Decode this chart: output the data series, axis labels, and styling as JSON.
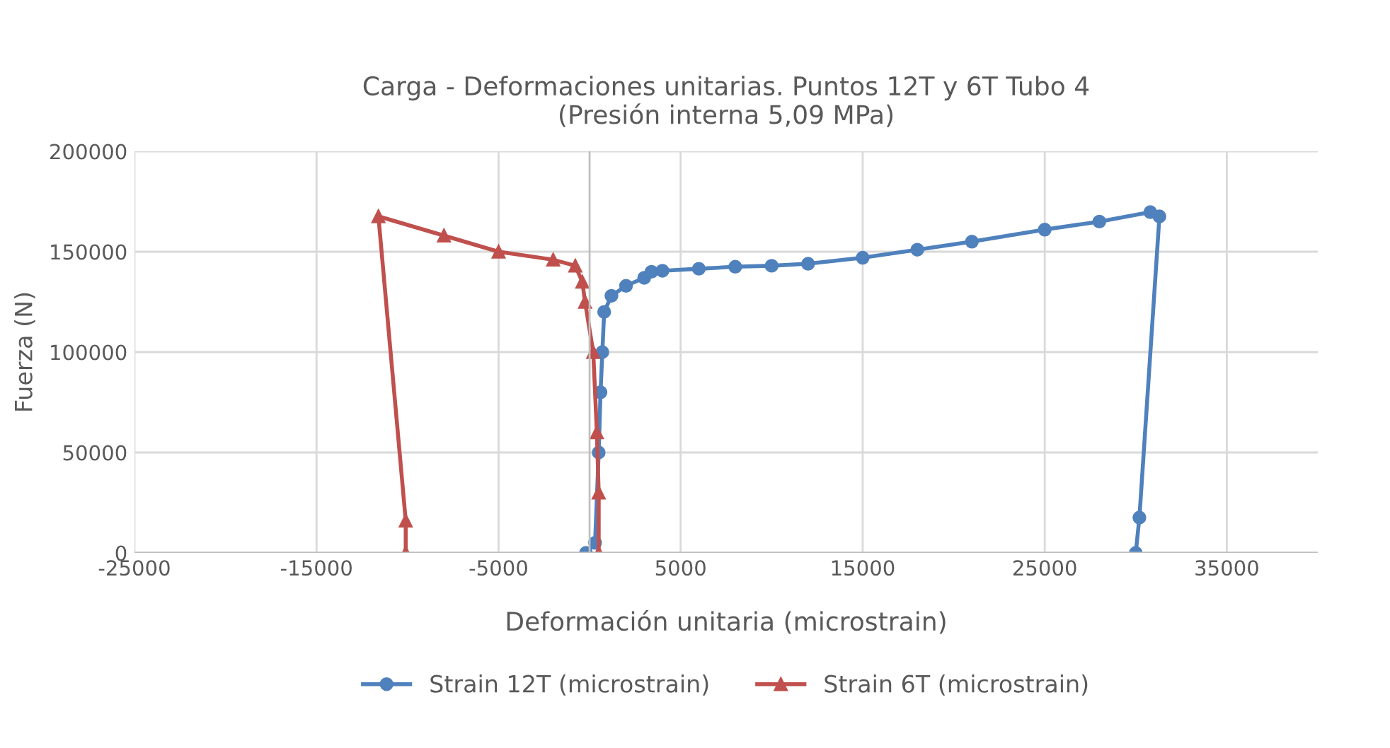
{
  "chart_data": {
    "type": "line",
    "title": "Carga - Deformaciones unitarias. Puntos 12T y 6T Tubo 4\n(Presión interna 5,09 MPa)",
    "xlabel": "Deformación unitaria (microstrain)",
    "ylabel": "Fuerza (N)",
    "xlim": [
      -25000,
      40000
    ],
    "xticks": [
      -25000,
      -15000,
      -5000,
      5000,
      15000,
      25000,
      35000
    ],
    "ylim": [
      0,
      200000
    ],
    "yticks": [
      0,
      50000,
      100000,
      150000,
      200000
    ],
    "grid": true,
    "legend": "bottom",
    "series": [
      {
        "name": "Strain 12T (microstrain)",
        "color": "#4f81bd",
        "marker": "circle",
        "x": [
          -200,
          300,
          500,
          600,
          700,
          800,
          1200,
          2000,
          3000,
          3400,
          4000,
          6000,
          8000,
          10000,
          12000,
          15000,
          18000,
          21000,
          25000,
          28000,
          30800,
          31300,
          30200,
          30000
        ],
        "values": [
          0,
          5000,
          50000,
          80000,
          100000,
          120000,
          128000,
          133000,
          137000,
          140000,
          140500,
          141500,
          142500,
          143000,
          144000,
          147000,
          151000,
          155000,
          161000,
          165000,
          169700,
          167600,
          17600,
          0
        ]
      },
      {
        "name": "Strain 6T (microstrain)",
        "color": "#c0504d",
        "marker": "triangle",
        "x": [
          500,
          500,
          400,
          200,
          -250,
          -400,
          -785,
          -2000,
          -5000,
          -8000,
          -11600,
          -10100,
          -10100
        ],
        "values": [
          0,
          30000,
          60000,
          100000,
          125000,
          135000,
          143000,
          146000,
          150000,
          158000,
          167600,
          16000,
          0
        ]
      }
    ]
  }
}
